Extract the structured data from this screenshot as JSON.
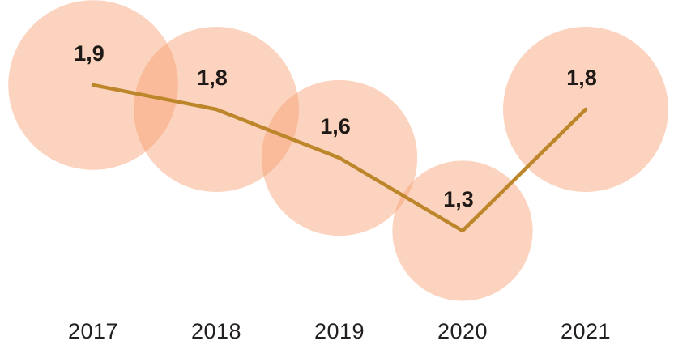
{
  "chart_data": {
    "type": "line",
    "subtype": "line-with-bubbles",
    "categories": [
      "2017",
      "2018",
      "2019",
      "2020",
      "2021"
    ],
    "values": [
      1.9,
      1.8,
      1.6,
      1.3,
      1.8
    ],
    "value_labels": [
      "1,9",
      "1,8",
      "1,6",
      "1,3",
      "1,8"
    ],
    "title": "",
    "xlabel": "",
    "ylabel": "",
    "ylim": [
      0,
      2
    ],
    "grid": false,
    "legend": "none",
    "style": {
      "line_color": "#BE862B",
      "bubble_color": "#F69E6E",
      "bubble_opacity": 0.45,
      "value_label_color": "#1F1A17",
      "axis_label_color": "#231F20"
    }
  }
}
